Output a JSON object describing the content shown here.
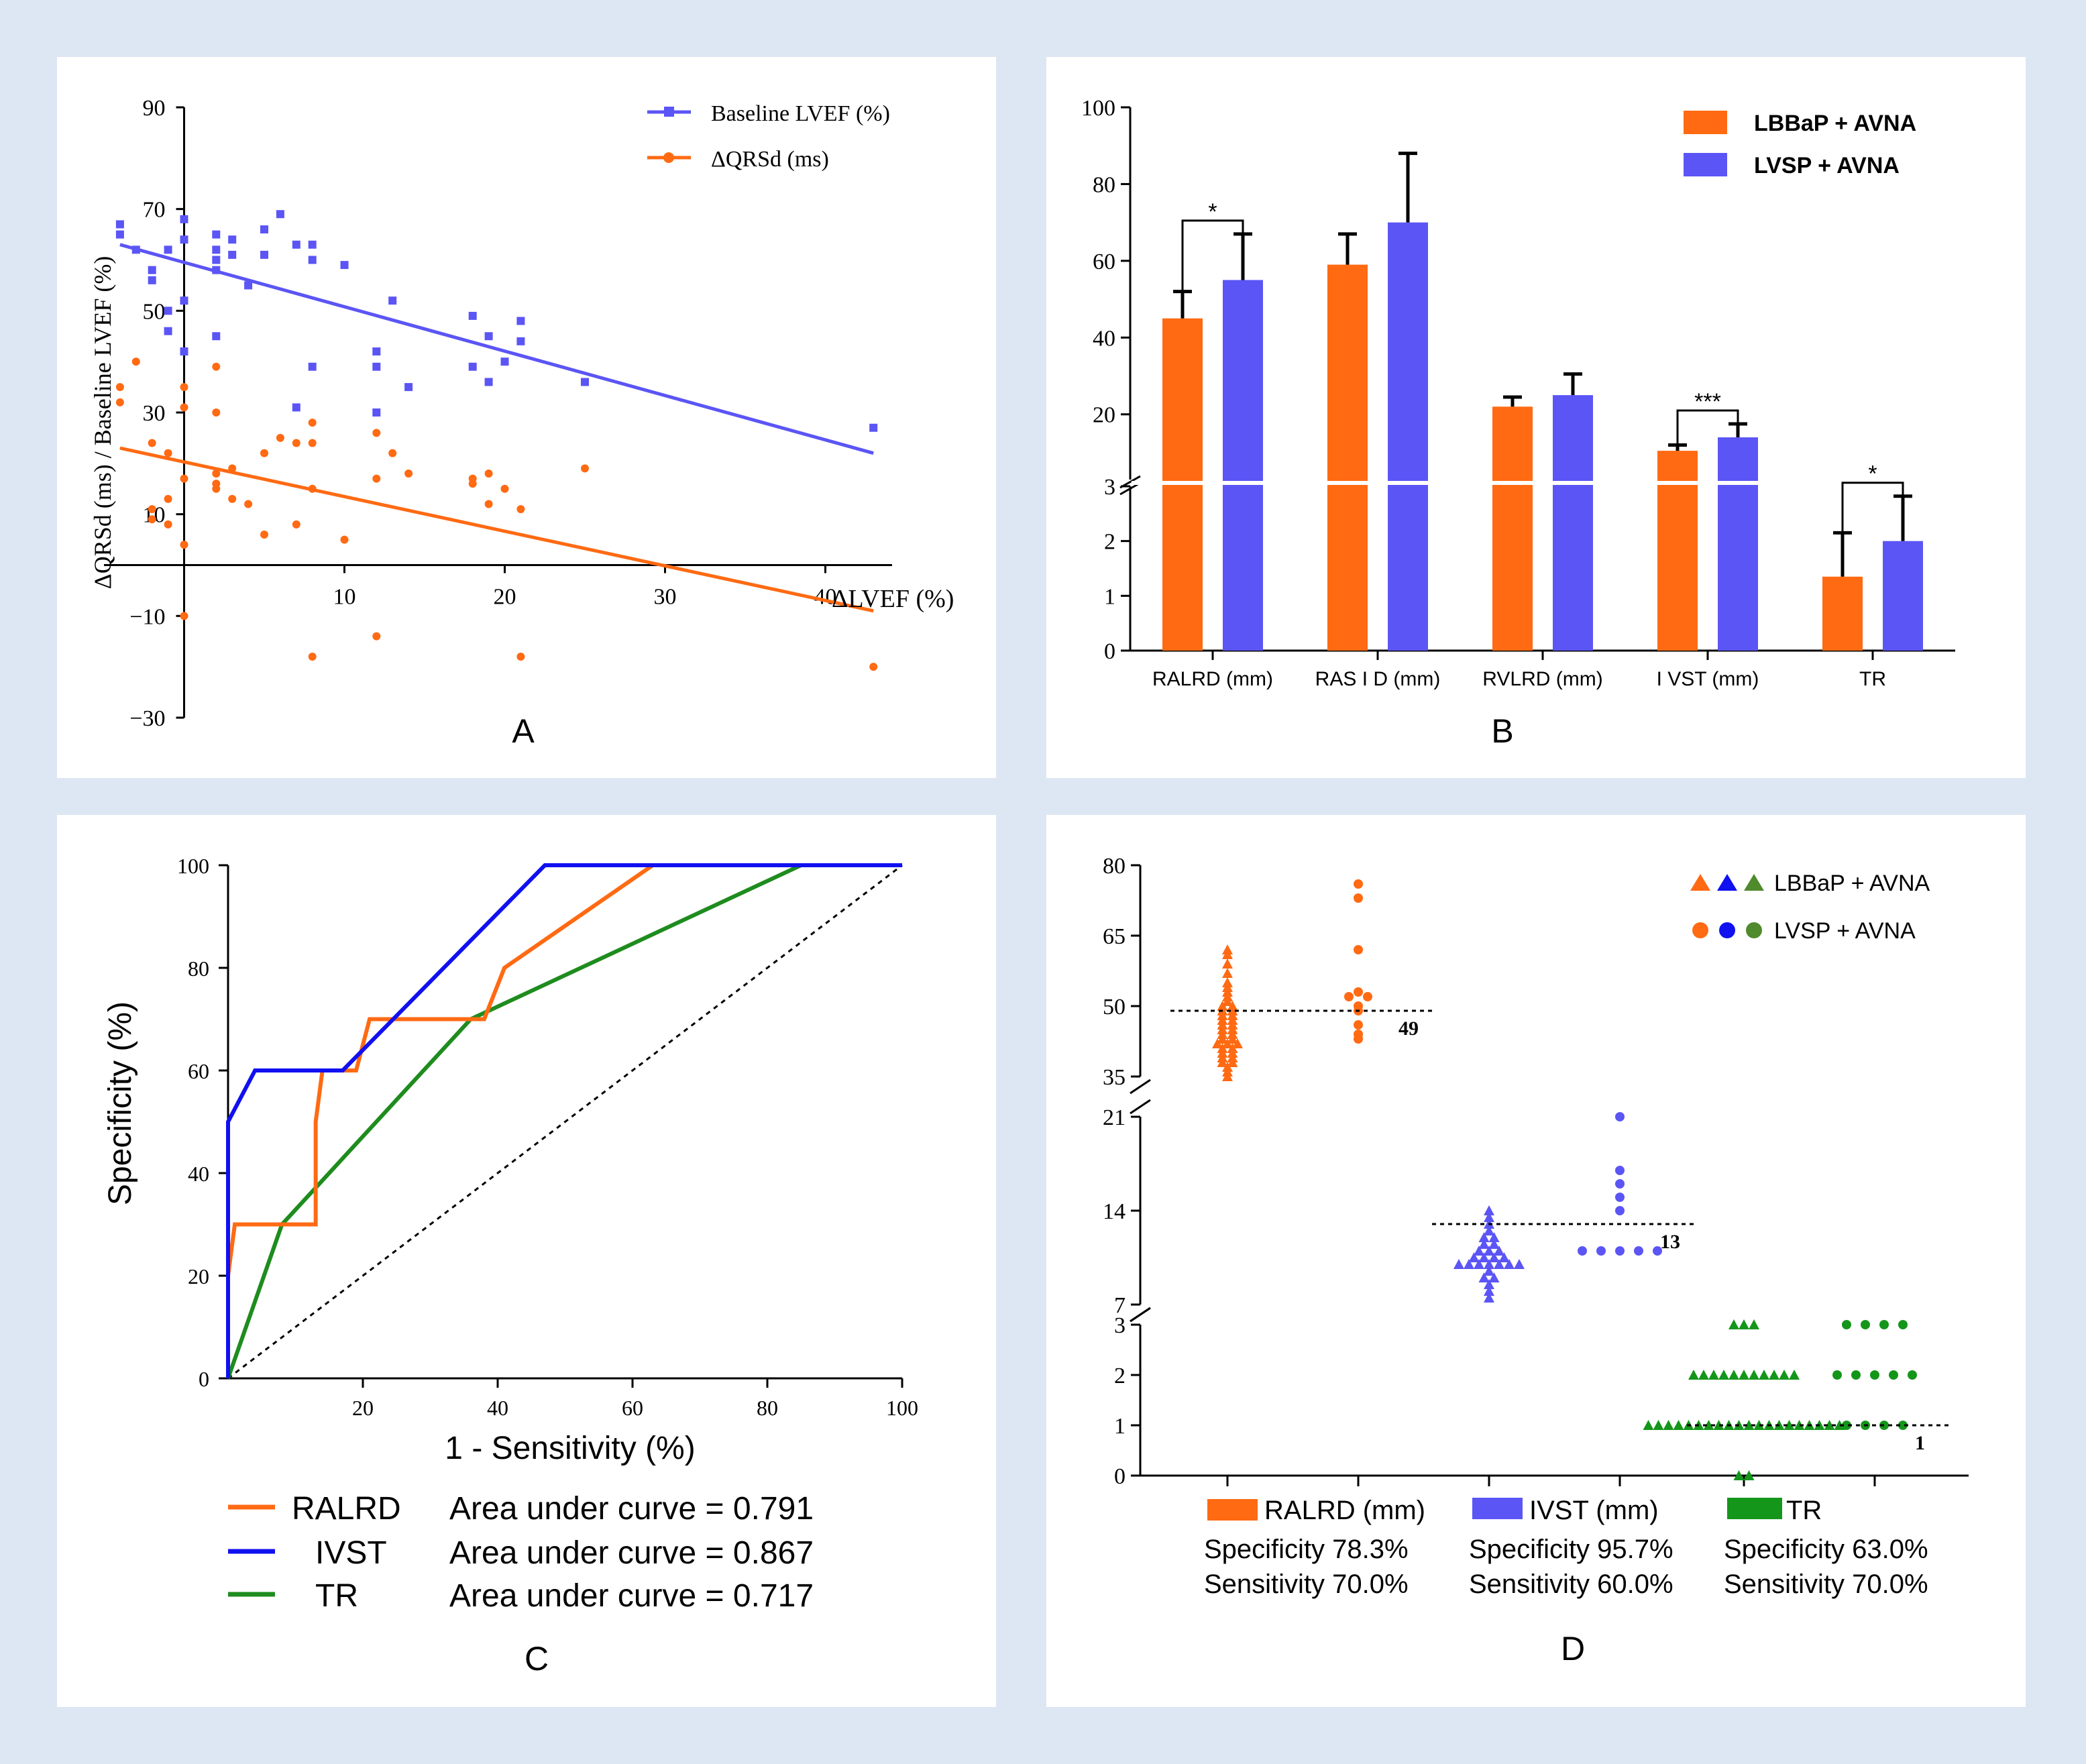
{
  "colors": {
    "orange": "#ff6a13",
    "purple": "#5b55f5",
    "blue": "#1010f0",
    "green": "#1e8c1e",
    "darkgreen": "#14961a",
    "olive": "#4f8a2c",
    "black": "#000000"
  },
  "chart_data": [
    {
      "id": "A",
      "type": "scatter",
      "panel_label": "A",
      "xlabel": "ΔLVEF (%)",
      "ylabel": "ΔQRSd (ms) / Baseline LVEF (%)",
      "xlim": [
        -5,
        45
      ],
      "ylim": [
        -30,
        90
      ],
      "xticks": [
        10,
        20,
        30,
        40
      ],
      "yticks": [
        90,
        70,
        50,
        30,
        10,
        -10,
        -30
      ],
      "xtick_labels": [
        "10",
        "20",
        "30",
        "40"
      ],
      "ytick_labels": [
        "90",
        "70",
        "50",
        "30",
        "10",
        "−10",
        "−30"
      ],
      "legend_position": "top-right",
      "series": [
        {
          "name": "Baseline LVEF (%)",
          "marker": "square",
          "fit": [
            [
              -4,
              63
            ],
            [
              43,
              22
            ]
          ],
          "points": [
            [
              -4,
              67
            ],
            [
              -4,
              65
            ],
            [
              -3,
              62
            ],
            [
              -2,
              58
            ],
            [
              -2,
              56
            ],
            [
              -1,
              62
            ],
            [
              -1,
              46
            ],
            [
              -1,
              50
            ],
            [
              0,
              68
            ],
            [
              0,
              64
            ],
            [
              0,
              52
            ],
            [
              0,
              42
            ],
            [
              2,
              65
            ],
            [
              2,
              62
            ],
            [
              2,
              60
            ],
            [
              2,
              58
            ],
            [
              2,
              45
            ],
            [
              3,
              64
            ],
            [
              3,
              61
            ],
            [
              4,
              55
            ],
            [
              5,
              66
            ],
            [
              5,
              61
            ],
            [
              6,
              69
            ],
            [
              7,
              63
            ],
            [
              7,
              31
            ],
            [
              8,
              63
            ],
            [
              8,
              60
            ],
            [
              8,
              39
            ],
            [
              10,
              59
            ],
            [
              12,
              42
            ],
            [
              12,
              39
            ],
            [
              12,
              30
            ],
            [
              13,
              52
            ],
            [
              14,
              35
            ],
            [
              18,
              49
            ],
            [
              18,
              39
            ],
            [
              19,
              45
            ],
            [
              19,
              36
            ],
            [
              20,
              40
            ],
            [
              21,
              48
            ],
            [
              21,
              44
            ],
            [
              25,
              36
            ],
            [
              43,
              27
            ]
          ]
        },
        {
          "name": "ΔQRSd (ms)",
          "marker": "circle",
          "fit": [
            [
              -4,
              23
            ],
            [
              43,
              -9
            ]
          ],
          "points": [
            [
              -4,
              35
            ],
            [
              -4,
              32
            ],
            [
              -3,
              40
            ],
            [
              -2,
              24
            ],
            [
              -2,
              11
            ],
            [
              -2,
              9
            ],
            [
              -1,
              22
            ],
            [
              -1,
              13
            ],
            [
              -1,
              8
            ],
            [
              0,
              35
            ],
            [
              0,
              31
            ],
            [
              0,
              17
            ],
            [
              0,
              4
            ],
            [
              0,
              -10
            ],
            [
              2,
              39
            ],
            [
              2,
              30
            ],
            [
              2,
              18
            ],
            [
              2,
              16
            ],
            [
              2,
              15
            ],
            [
              3,
              19
            ],
            [
              3,
              13
            ],
            [
              4,
              12
            ],
            [
              5,
              22
            ],
            [
              5,
              6
            ],
            [
              6,
              25
            ],
            [
              7,
              24
            ],
            [
              7,
              8
            ],
            [
              8,
              28
            ],
            [
              8,
              24
            ],
            [
              8,
              15
            ],
            [
              8,
              -18
            ],
            [
              10,
              5
            ],
            [
              12,
              26
            ],
            [
              12,
              17
            ],
            [
              12,
              -14
            ],
            [
              13,
              22
            ],
            [
              14,
              18
            ],
            [
              18,
              17
            ],
            [
              18,
              16
            ],
            [
              19,
              18
            ],
            [
              19,
              12
            ],
            [
              20,
              15
            ],
            [
              21,
              11
            ],
            [
              21,
              -18
            ],
            [
              25,
              19
            ],
            [
              43,
              -20
            ]
          ]
        }
      ]
    },
    {
      "id": "B",
      "type": "bar",
      "panel_label": "B",
      "categories": [
        "RALRD (mm)",
        "RAS I D (mm)",
        "RVLRD (mm)",
        "I VST (mm)",
        "TR"
      ],
      "upper_axis": {
        "ylim": [
          3,
          100
        ],
        "ticks": [
          20,
          40,
          60,
          80,
          100
        ],
        "tick_labels": [
          "20",
          "40",
          "60",
          "80",
          "100"
        ]
      },
      "lower_axis": {
        "ylim": [
          0,
          3
        ],
        "ticks": [
          0,
          1,
          2,
          3
        ],
        "tick_labels": [
          "0",
          "1",
          "2",
          "3"
        ]
      },
      "legend_position": "top-right",
      "series": [
        {
          "name": "LBBaP + AVNA",
          "values": [
            45,
            59,
            22,
            10.5,
            1.35
          ],
          "errors": [
            7,
            8,
            2.5,
            1.5,
            0.8
          ]
        },
        {
          "name": "LVSP + AVNA",
          "values": [
            55,
            70,
            25,
            14,
            2.0
          ],
          "errors": [
            12,
            18,
            5.5,
            3.5,
            0.82
          ]
        }
      ],
      "significance": [
        {
          "category": 0,
          "label": "*"
        },
        {
          "category": 3,
          "label": "***"
        },
        {
          "category": 4,
          "label": "*"
        }
      ]
    },
    {
      "id": "C",
      "type": "line",
      "panel_label": "C",
      "xlabel": "1 - Sensitivity (%)",
      "ylabel": "Specificity (%)",
      "xlim": [
        0,
        100
      ],
      "ylim": [
        0,
        100
      ],
      "xticks": [
        20,
        40,
        60,
        80,
        100
      ],
      "yticks": [
        0,
        20,
        40,
        60,
        80,
        100
      ],
      "xtick_labels": [
        "20",
        "40",
        "60",
        "80",
        "100"
      ],
      "ytick_labels": [
        "0",
        "20",
        "40",
        "60",
        "80",
        "100"
      ],
      "series": [
        {
          "name": "RALRD",
          "auc_label": "Area under curve = 0.791",
          "points": [
            [
              0,
              0
            ],
            [
              0,
              20
            ],
            [
              1,
              30
            ],
            [
              13,
              30
            ],
            [
              13,
              50
            ],
            [
              14,
              60
            ],
            [
              19,
              60
            ],
            [
              21,
              70
            ],
            [
              38,
              70
            ],
            [
              41,
              80
            ],
            [
              52,
              90
            ],
            [
              63,
              100
            ],
            [
              100,
              100
            ]
          ]
        },
        {
          "name": "IVST",
          "auc_label": "Area under curve = 0.867",
          "points": [
            [
              0,
              0
            ],
            [
              0,
              50
            ],
            [
              4,
              60
            ],
            [
              17,
              60
            ],
            [
              47,
              100
            ],
            [
              100,
              100
            ]
          ]
        },
        {
          "name": "TR",
          "auc_label": "Area under curve = 0.717",
          "points": [
            [
              0,
              0
            ],
            [
              8,
              30
            ],
            [
              36,
              70
            ],
            [
              85,
              100
            ],
            [
              100,
              100
            ]
          ]
        }
      ],
      "reference_line": [
        [
          0,
          0
        ],
        [
          100,
          100
        ]
      ]
    },
    {
      "id": "D",
      "type": "scatter",
      "panel_label": "D",
      "legend_position": "top-right",
      "legend_entries": [
        "LBBaP + AVNA",
        "LVSP + AVNA"
      ],
      "segments": [
        {
          "name": "RALRD (mm)",
          "ylim": [
            35,
            80
          ],
          "ticks": [
            80,
            65,
            50,
            35
          ],
          "tick_labels": [
            "80",
            "65",
            "50",
            "35"
          ],
          "cutoff": 49,
          "cutoff_label": "49",
          "lbbap": [
            62,
            61,
            59,
            57,
            55,
            54,
            53,
            52,
            51,
            50,
            50,
            49,
            49,
            48,
            48,
            47,
            47,
            46,
            46,
            45,
            45,
            44,
            44,
            43,
            43,
            42,
            42,
            42,
            41,
            41,
            40,
            40,
            39,
            39,
            38,
            38,
            37,
            36,
            35
          ],
          "lvsp": [
            76,
            73,
            62,
            53,
            52,
            52,
            50,
            49,
            46,
            44,
            43
          ]
        },
        {
          "name": "IVST (mm)",
          "ylim": [
            7,
            21
          ],
          "ticks": [
            21,
            14,
            7
          ],
          "tick_labels": [
            "21",
            "14",
            "7"
          ],
          "cutoff": 13,
          "cutoff_label": "13",
          "lbbap": [
            14,
            13.5,
            13,
            12.5,
            12,
            12,
            11.5,
            11.5,
            11,
            11,
            11,
            10.5,
            10.5,
            10.5,
            10.5,
            10,
            10,
            10,
            10,
            10,
            10,
            10,
            9.5,
            9,
            9,
            8.5,
            8,
            7.5
          ],
          "lvsp": [
            21,
            17,
            16,
            15,
            14,
            11,
            11,
            11,
            11,
            11
          ]
        },
        {
          "name": "TR",
          "ylim": [
            0,
            3
          ],
          "ticks": [
            3,
            2,
            1,
            0
          ],
          "tick_labels": [
            "3",
            "2",
            "1",
            "0"
          ],
          "cutoff": 1,
          "cutoff_label": "1",
          "lbbap": [
            3,
            3,
            3,
            2,
            2,
            2,
            2,
            2,
            2,
            2,
            2,
            2,
            2,
            2,
            1,
            1,
            1,
            1,
            1,
            1,
            1,
            1,
            1,
            1,
            1,
            1,
            1,
            1,
            1,
            1,
            1,
            1,
            1,
            1,
            0,
            0
          ],
          "lvsp": [
            3,
            3,
            3,
            3,
            2,
            2,
            2,
            2,
            2,
            1,
            1,
            1,
            1
          ]
        }
      ],
      "stats": [
        {
          "label": "RALRD (mm)",
          "specificity": "Specificity 78.3%",
          "sensitivity": "Sensitivity 70.0%"
        },
        {
          "label": "IVST (mm)",
          "specificity": "Specificity 95.7%",
          "sensitivity": "Sensitivity 60.0%"
        },
        {
          "label": "TR",
          "specificity": "Specificity 63.0%",
          "sensitivity": "Sensitivity 70.0%"
        }
      ]
    }
  ]
}
